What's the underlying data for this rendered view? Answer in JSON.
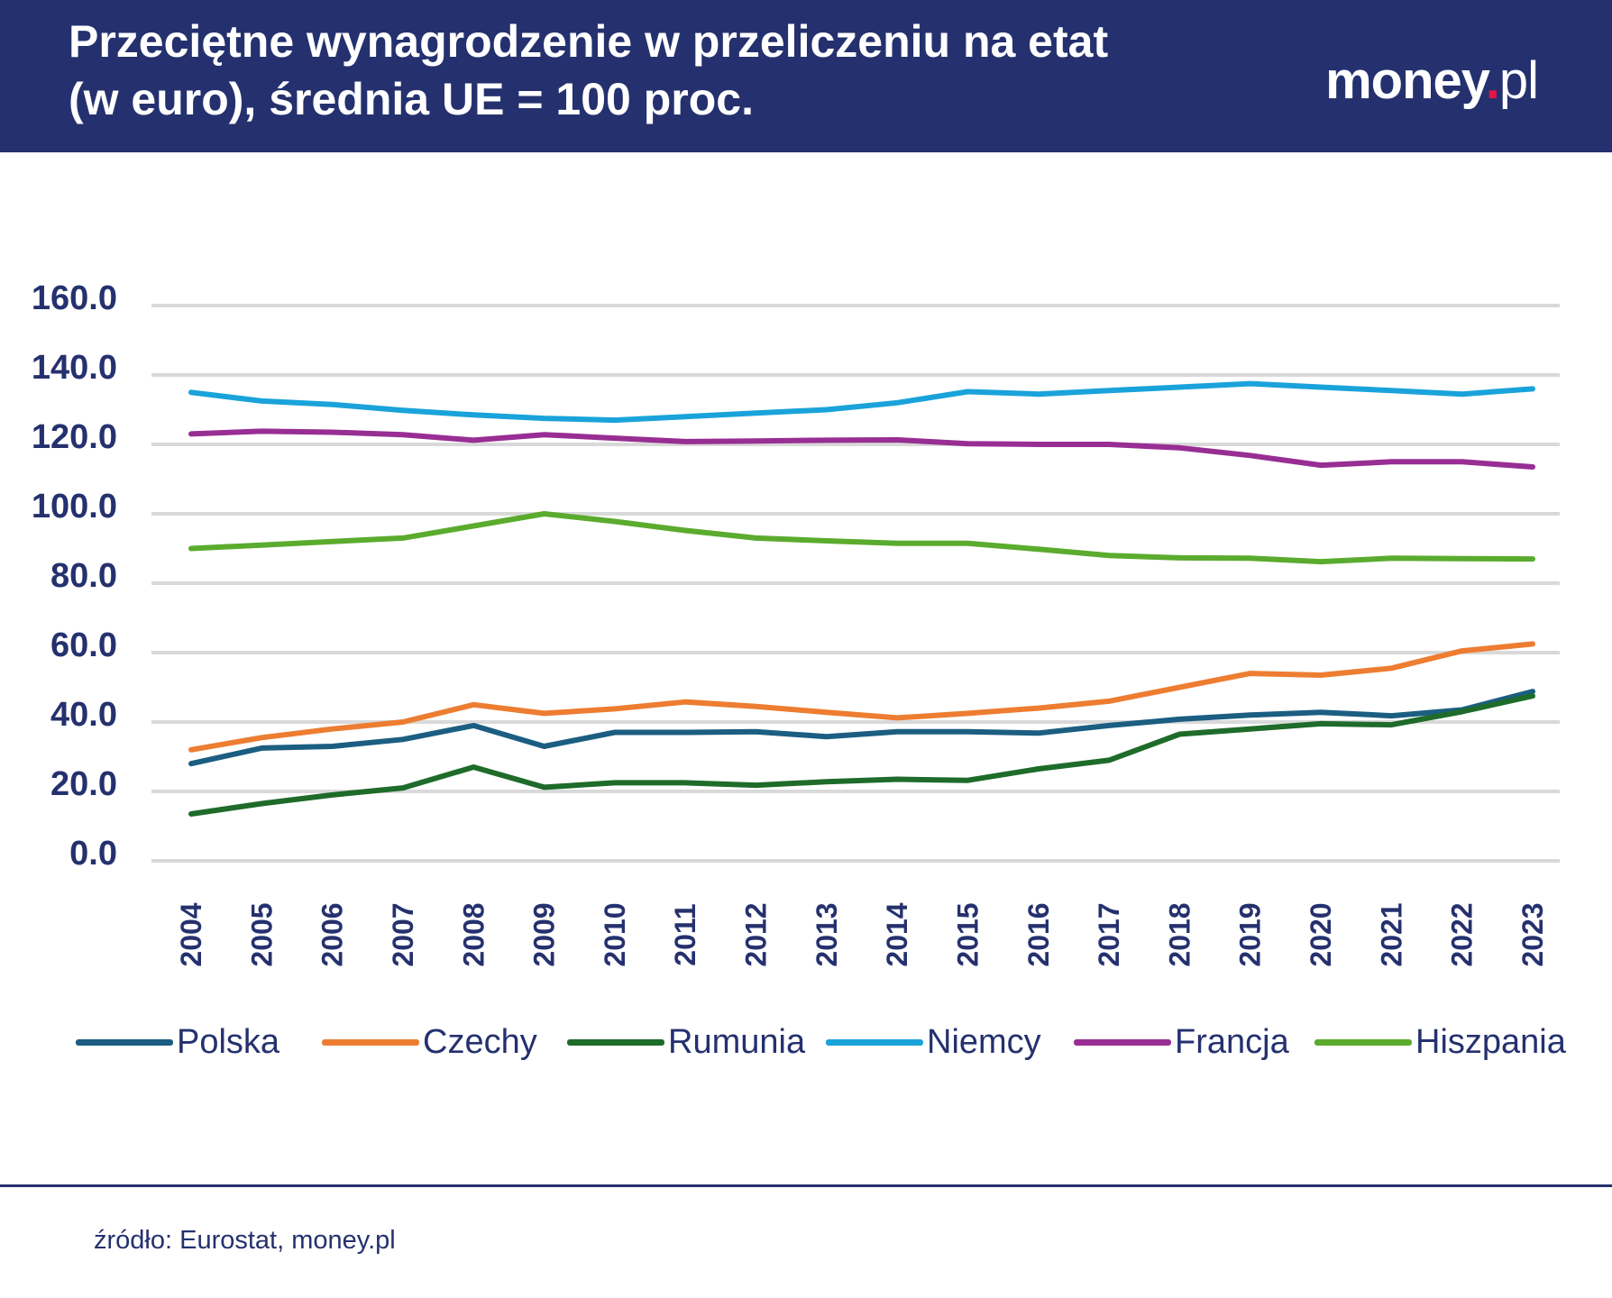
{
  "header": {
    "title_line1": "Przeciętne wynagrodzenie w przeliczeniu na etat",
    "title_line2": "(w euro), średnia UE = 100 proc.",
    "logo_text": "money",
    "logo_dot": ".",
    "logo_suffix": "pl"
  },
  "footer": {
    "source": "źródło: Eurostat, money.pl"
  },
  "colors": {
    "header_bg": "#25316e",
    "text": "#25316e",
    "grid": "#d9d9d9",
    "logo_dot": "#e3154b"
  },
  "chart_data": {
    "type": "line",
    "title": "Przeciętne wynagrodzenie w przeliczeniu na etat (w euro), średnia UE = 100 proc.",
    "xlabel": "",
    "ylabel": "",
    "ylim": [
      0,
      160
    ],
    "grid": true,
    "legend_position": "bottom",
    "y_ticks": [
      "0.0",
      "20.0",
      "40.0",
      "60.0",
      "80.0",
      "100.0",
      "120.0",
      "140.0",
      "160.0"
    ],
    "categories": [
      "2004",
      "2005",
      "2006",
      "2007",
      "2008",
      "2009",
      "2010",
      "2011",
      "2012",
      "2013",
      "2014",
      "2015",
      "2016",
      "2017",
      "2018",
      "2019",
      "2020",
      "2021",
      "2022",
      "2023"
    ],
    "series": [
      {
        "name": "Polska",
        "color": "#1b5e82",
        "values": [
          28.0,
          32.5,
          33.0,
          35.0,
          39.0,
          33.0,
          37.0,
          37.0,
          37.2,
          35.8,
          37.2,
          37.2,
          36.8,
          39.0,
          40.8,
          42.0,
          42.8,
          41.8,
          43.5,
          48.8
        ]
      },
      {
        "name": "Czechy",
        "color": "#ed7d31",
        "values": [
          32.0,
          35.5,
          38.0,
          40.0,
          45.0,
          42.5,
          43.8,
          45.8,
          44.5,
          42.8,
          41.2,
          42.5,
          44.0,
          46.0,
          50.0,
          54.0,
          53.5,
          55.5,
          60.5,
          62.5
        ]
      },
      {
        "name": "Rumunia",
        "color": "#1e6b2a",
        "values": [
          13.5,
          16.5,
          19.0,
          21.0,
          27.0,
          21.2,
          22.5,
          22.5,
          21.8,
          22.8,
          23.5,
          23.2,
          26.5,
          29.0,
          36.5,
          38.0,
          39.5,
          39.2,
          43.0,
          47.5
        ]
      },
      {
        "name": "Niemcy",
        "color": "#1aa3da",
        "values": [
          135.0,
          132.5,
          131.5,
          129.8,
          128.5,
          127.5,
          127.0,
          128.0,
          129.0,
          130.0,
          132.0,
          135.2,
          134.5,
          135.5,
          136.5,
          137.5,
          136.5,
          135.5,
          134.5,
          136.0
        ]
      },
      {
        "name": "Francja",
        "color": "#982e93",
        "values": [
          123.0,
          123.8,
          123.5,
          122.8,
          121.2,
          122.8,
          121.8,
          120.8,
          121.0,
          121.2,
          121.3,
          120.2,
          120.0,
          120.0,
          119.0,
          116.8,
          114.0,
          115.0,
          115.0,
          113.5
        ]
      },
      {
        "name": "Hiszpania",
        "color": "#5bab2e",
        "values": [
          90.0,
          91.0,
          92.0,
          93.0,
          96.5,
          100.0,
          97.8,
          95.2,
          93.0,
          92.2,
          91.5,
          91.5,
          89.8,
          88.0,
          87.3,
          87.2,
          86.2,
          87.2,
          87.1,
          87.0
        ]
      }
    ]
  }
}
